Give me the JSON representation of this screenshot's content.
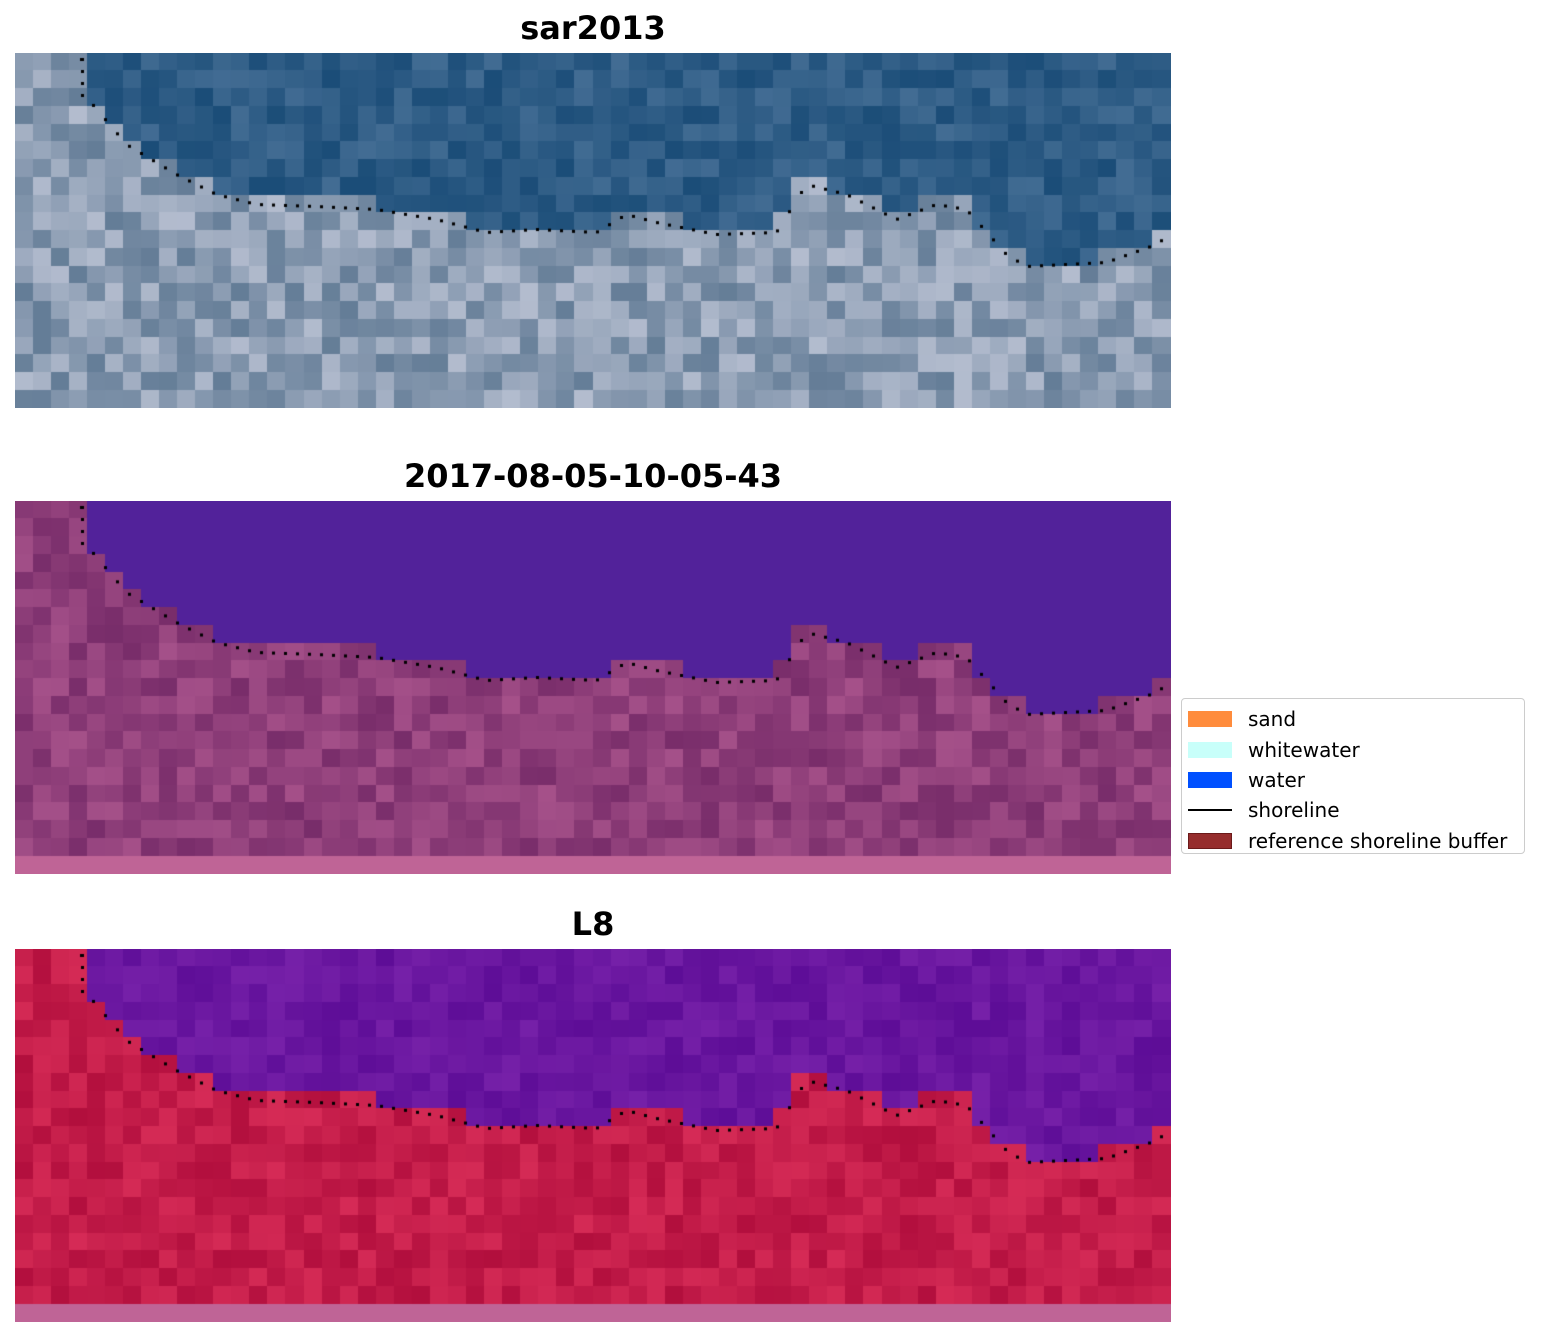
{
  "panels": [
    {
      "title": "sar2013",
      "style": "rgb"
    },
    {
      "title": "2017-08-05-10-05-43",
      "style": "classified"
    },
    {
      "title": "L8",
      "style": "ndwi"
    }
  ],
  "legend": {
    "items": [
      {
        "label": "sand",
        "type": "patch",
        "color": "#ff8c3c"
      },
      {
        "label": "whitewater",
        "type": "patch",
        "color": "#c8fffa"
      },
      {
        "label": "water",
        "type": "patch",
        "color": "#0050ff"
      },
      {
        "label": "shoreline",
        "type": "line",
        "color": "#000000"
      },
      {
        "label": "reference shoreline buffer",
        "type": "patch",
        "color": "#962d2d"
      }
    ]
  },
  "colors": {
    "sea_rgb": "#2f5d86",
    "land_rgb": "#8c9db3",
    "water_class": "#52229a",
    "land_class": "#8f3f7a",
    "water_ndwi": "#6a17a0",
    "land_ndwi": "#c41d4a",
    "bottom_strip": "#bf6496",
    "shoreline_dots": "#000000"
  }
}
